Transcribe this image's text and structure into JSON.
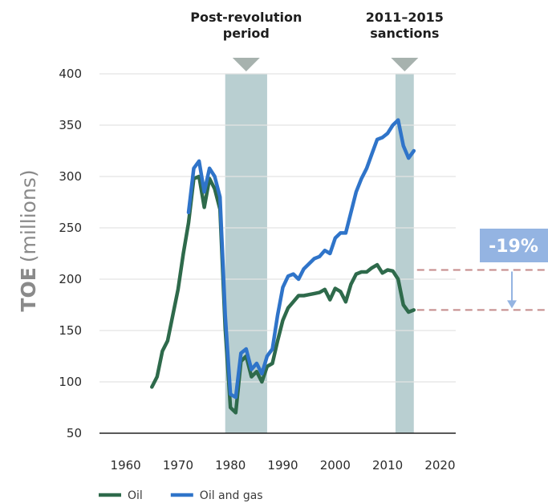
{
  "chart_data": {
    "type": "line",
    "ylabel_bold": "TOE",
    "ylabel_rest": "(millions)",
    "xlim": [
      1955,
      2023
    ],
    "ylim": [
      50,
      400
    ],
    "x_ticks": [
      1960,
      1970,
      1980,
      1990,
      2000,
      2010,
      2020
    ],
    "y_ticks": [
      50,
      100,
      150,
      200,
      250,
      300,
      350,
      400
    ],
    "grid": "horizontal",
    "legend_placement": "bottom-left",
    "bands": [
      {
        "label_lines": [
          "Post-revolution",
          "period"
        ],
        "x_start": 1979,
        "x_end": 1987,
        "color": "#b9cfd1"
      },
      {
        "label_lines": [
          "2011–2015",
          "sanctions"
        ],
        "x_start": 2011.5,
        "x_end": 2015,
        "color": "#b9cfd1"
      }
    ],
    "series": [
      {
        "name": "Oil",
        "color": "#2e6a4b",
        "points": [
          [
            1965,
            95
          ],
          [
            1966,
            105
          ],
          [
            1967,
            130
          ],
          [
            1968,
            140
          ],
          [
            1969,
            165
          ],
          [
            1970,
            190
          ],
          [
            1971,
            225
          ],
          [
            1972,
            255
          ],
          [
            1973,
            298
          ],
          [
            1974,
            300
          ],
          [
            1975,
            270
          ],
          [
            1976,
            298
          ],
          [
            1977,
            288
          ],
          [
            1978,
            268
          ],
          [
            1979,
            152
          ],
          [
            1980,
            75
          ],
          [
            1981,
            70
          ],
          [
            1982,
            120
          ],
          [
            1983,
            125
          ],
          [
            1984,
            105
          ],
          [
            1985,
            110
          ],
          [
            1986,
            100
          ],
          [
            1987,
            115
          ],
          [
            1988,
            118
          ],
          [
            1989,
            140
          ],
          [
            1990,
            160
          ],
          [
            1991,
            172
          ],
          [
            1992,
            178
          ],
          [
            1993,
            184
          ],
          [
            1994,
            184
          ],
          [
            1995,
            185
          ],
          [
            1996,
            186
          ],
          [
            1997,
            187
          ],
          [
            1998,
            190
          ],
          [
            1999,
            180
          ],
          [
            2000,
            191
          ],
          [
            2001,
            188
          ],
          [
            2002,
            178
          ],
          [
            2003,
            195
          ],
          [
            2004,
            205
          ],
          [
            2005,
            207
          ],
          [
            2006,
            207
          ],
          [
            2007,
            211
          ],
          [
            2008,
            214
          ],
          [
            2009,
            206
          ],
          [
            2010,
            209
          ],
          [
            2011,
            208
          ],
          [
            2012,
            200
          ],
          [
            2013,
            175
          ],
          [
            2014,
            168
          ],
          [
            2015,
            170
          ]
        ]
      },
      {
        "name": "Oil and gas",
        "color": "#2f74c9",
        "points": [
          [
            1972,
            265
          ],
          [
            1973,
            308
          ],
          [
            1974,
            315
          ],
          [
            1975,
            285
          ],
          [
            1976,
            308
          ],
          [
            1977,
            300
          ],
          [
            1978,
            280
          ],
          [
            1979,
            165
          ],
          [
            1980,
            88
          ],
          [
            1981,
            85
          ],
          [
            1982,
            128
          ],
          [
            1983,
            132
          ],
          [
            1984,
            112
          ],
          [
            1985,
            118
          ],
          [
            1986,
            108
          ],
          [
            1987,
            125
          ],
          [
            1988,
            132
          ],
          [
            1989,
            165
          ],
          [
            1990,
            192
          ],
          [
            1991,
            203
          ],
          [
            1992,
            205
          ],
          [
            1993,
            200
          ],
          [
            1994,
            210
          ],
          [
            1995,
            215
          ],
          [
            1996,
            220
          ],
          [
            1997,
            222
          ],
          [
            1998,
            228
          ],
          [
            1999,
            225
          ],
          [
            2000,
            240
          ],
          [
            2001,
            245
          ],
          [
            2002,
            245
          ],
          [
            2003,
            265
          ],
          [
            2004,
            285
          ],
          [
            2005,
            298
          ],
          [
            2006,
            308
          ],
          [
            2007,
            322
          ],
          [
            2008,
            336
          ],
          [
            2009,
            338
          ],
          [
            2010,
            342
          ],
          [
            2011,
            350
          ],
          [
            2012,
            355
          ],
          [
            2013,
            330
          ],
          [
            2014,
            318
          ],
          [
            2015,
            325
          ]
        ]
      }
    ],
    "callout": {
      "text": "-19%",
      "from_value": 209,
      "to_value": 170,
      "box_color": "#94b4e2",
      "line_color": "#c48a8a"
    }
  }
}
